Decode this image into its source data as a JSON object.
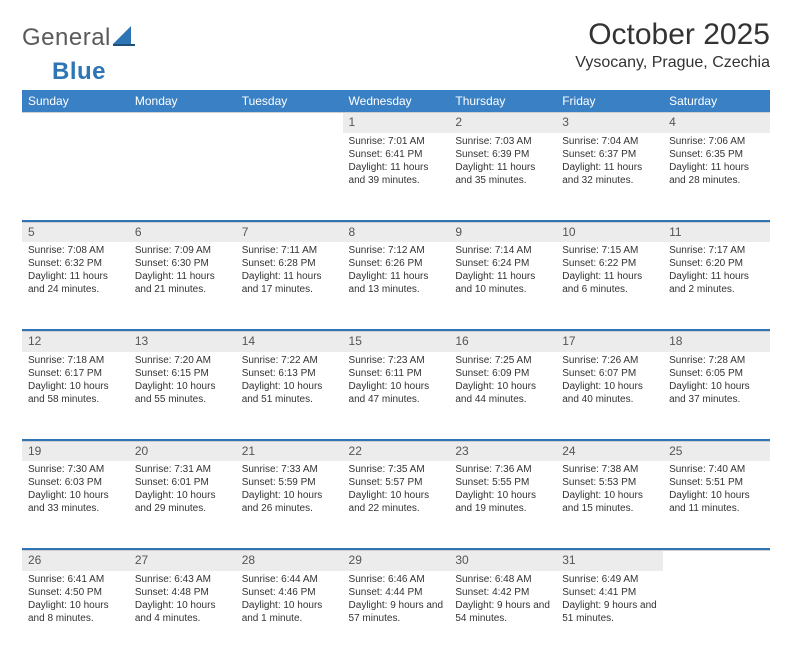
{
  "brand": {
    "part1": "General",
    "part2": "Blue"
  },
  "title": "October 2025",
  "location": "Vysocany, Prague, Czechia",
  "colors": {
    "header_bg": "#3a80c4",
    "header_text": "#ffffff",
    "daynum_bg": "#ececec",
    "rule": "#2e75b6",
    "text": "#333333",
    "logo_gray": "#5a5a5a",
    "logo_blue": "#2e75b6"
  },
  "typography": {
    "title_fontsize": 30,
    "location_fontsize": 16,
    "weekday_fontsize": 12,
    "daynum_fontsize": 12,
    "cell_fontsize": 10
  },
  "weekdays": [
    "Sunday",
    "Monday",
    "Tuesday",
    "Wednesday",
    "Thursday",
    "Friday",
    "Saturday"
  ],
  "weeks": [
    [
      null,
      null,
      null,
      {
        "n": "1",
        "sunrise": "Sunrise: 7:01 AM",
        "sunset": "Sunset: 6:41 PM",
        "daylight": "Daylight: 11 hours and 39 minutes."
      },
      {
        "n": "2",
        "sunrise": "Sunrise: 7:03 AM",
        "sunset": "Sunset: 6:39 PM",
        "daylight": "Daylight: 11 hours and 35 minutes."
      },
      {
        "n": "3",
        "sunrise": "Sunrise: 7:04 AM",
        "sunset": "Sunset: 6:37 PM",
        "daylight": "Daylight: 11 hours and 32 minutes."
      },
      {
        "n": "4",
        "sunrise": "Sunrise: 7:06 AM",
        "sunset": "Sunset: 6:35 PM",
        "daylight": "Daylight: 11 hours and 28 minutes."
      }
    ],
    [
      {
        "n": "5",
        "sunrise": "Sunrise: 7:08 AM",
        "sunset": "Sunset: 6:32 PM",
        "daylight": "Daylight: 11 hours and 24 minutes."
      },
      {
        "n": "6",
        "sunrise": "Sunrise: 7:09 AM",
        "sunset": "Sunset: 6:30 PM",
        "daylight": "Daylight: 11 hours and 21 minutes."
      },
      {
        "n": "7",
        "sunrise": "Sunrise: 7:11 AM",
        "sunset": "Sunset: 6:28 PM",
        "daylight": "Daylight: 11 hours and 17 minutes."
      },
      {
        "n": "8",
        "sunrise": "Sunrise: 7:12 AM",
        "sunset": "Sunset: 6:26 PM",
        "daylight": "Daylight: 11 hours and 13 minutes."
      },
      {
        "n": "9",
        "sunrise": "Sunrise: 7:14 AM",
        "sunset": "Sunset: 6:24 PM",
        "daylight": "Daylight: 11 hours and 10 minutes."
      },
      {
        "n": "10",
        "sunrise": "Sunrise: 7:15 AM",
        "sunset": "Sunset: 6:22 PM",
        "daylight": "Daylight: 11 hours and 6 minutes."
      },
      {
        "n": "11",
        "sunrise": "Sunrise: 7:17 AM",
        "sunset": "Sunset: 6:20 PM",
        "daylight": "Daylight: 11 hours and 2 minutes."
      }
    ],
    [
      {
        "n": "12",
        "sunrise": "Sunrise: 7:18 AM",
        "sunset": "Sunset: 6:17 PM",
        "daylight": "Daylight: 10 hours and 58 minutes."
      },
      {
        "n": "13",
        "sunrise": "Sunrise: 7:20 AM",
        "sunset": "Sunset: 6:15 PM",
        "daylight": "Daylight: 10 hours and 55 minutes."
      },
      {
        "n": "14",
        "sunrise": "Sunrise: 7:22 AM",
        "sunset": "Sunset: 6:13 PM",
        "daylight": "Daylight: 10 hours and 51 minutes."
      },
      {
        "n": "15",
        "sunrise": "Sunrise: 7:23 AM",
        "sunset": "Sunset: 6:11 PM",
        "daylight": "Daylight: 10 hours and 47 minutes."
      },
      {
        "n": "16",
        "sunrise": "Sunrise: 7:25 AM",
        "sunset": "Sunset: 6:09 PM",
        "daylight": "Daylight: 10 hours and 44 minutes."
      },
      {
        "n": "17",
        "sunrise": "Sunrise: 7:26 AM",
        "sunset": "Sunset: 6:07 PM",
        "daylight": "Daylight: 10 hours and 40 minutes."
      },
      {
        "n": "18",
        "sunrise": "Sunrise: 7:28 AM",
        "sunset": "Sunset: 6:05 PM",
        "daylight": "Daylight: 10 hours and 37 minutes."
      }
    ],
    [
      {
        "n": "19",
        "sunrise": "Sunrise: 7:30 AM",
        "sunset": "Sunset: 6:03 PM",
        "daylight": "Daylight: 10 hours and 33 minutes."
      },
      {
        "n": "20",
        "sunrise": "Sunrise: 7:31 AM",
        "sunset": "Sunset: 6:01 PM",
        "daylight": "Daylight: 10 hours and 29 minutes."
      },
      {
        "n": "21",
        "sunrise": "Sunrise: 7:33 AM",
        "sunset": "Sunset: 5:59 PM",
        "daylight": "Daylight: 10 hours and 26 minutes."
      },
      {
        "n": "22",
        "sunrise": "Sunrise: 7:35 AM",
        "sunset": "Sunset: 5:57 PM",
        "daylight": "Daylight: 10 hours and 22 minutes."
      },
      {
        "n": "23",
        "sunrise": "Sunrise: 7:36 AM",
        "sunset": "Sunset: 5:55 PM",
        "daylight": "Daylight: 10 hours and 19 minutes."
      },
      {
        "n": "24",
        "sunrise": "Sunrise: 7:38 AM",
        "sunset": "Sunset: 5:53 PM",
        "daylight": "Daylight: 10 hours and 15 minutes."
      },
      {
        "n": "25",
        "sunrise": "Sunrise: 7:40 AM",
        "sunset": "Sunset: 5:51 PM",
        "daylight": "Daylight: 10 hours and 11 minutes."
      }
    ],
    [
      {
        "n": "26",
        "sunrise": "Sunrise: 6:41 AM",
        "sunset": "Sunset: 4:50 PM",
        "daylight": "Daylight: 10 hours and 8 minutes."
      },
      {
        "n": "27",
        "sunrise": "Sunrise: 6:43 AM",
        "sunset": "Sunset: 4:48 PM",
        "daylight": "Daylight: 10 hours and 4 minutes."
      },
      {
        "n": "28",
        "sunrise": "Sunrise: 6:44 AM",
        "sunset": "Sunset: 4:46 PM",
        "daylight": "Daylight: 10 hours and 1 minute."
      },
      {
        "n": "29",
        "sunrise": "Sunrise: 6:46 AM",
        "sunset": "Sunset: 4:44 PM",
        "daylight": "Daylight: 9 hours and 57 minutes."
      },
      {
        "n": "30",
        "sunrise": "Sunrise: 6:48 AM",
        "sunset": "Sunset: 4:42 PM",
        "daylight": "Daylight: 9 hours and 54 minutes."
      },
      {
        "n": "31",
        "sunrise": "Sunrise: 6:49 AM",
        "sunset": "Sunset: 4:41 PM",
        "daylight": "Daylight: 9 hours and 51 minutes."
      },
      null
    ]
  ]
}
